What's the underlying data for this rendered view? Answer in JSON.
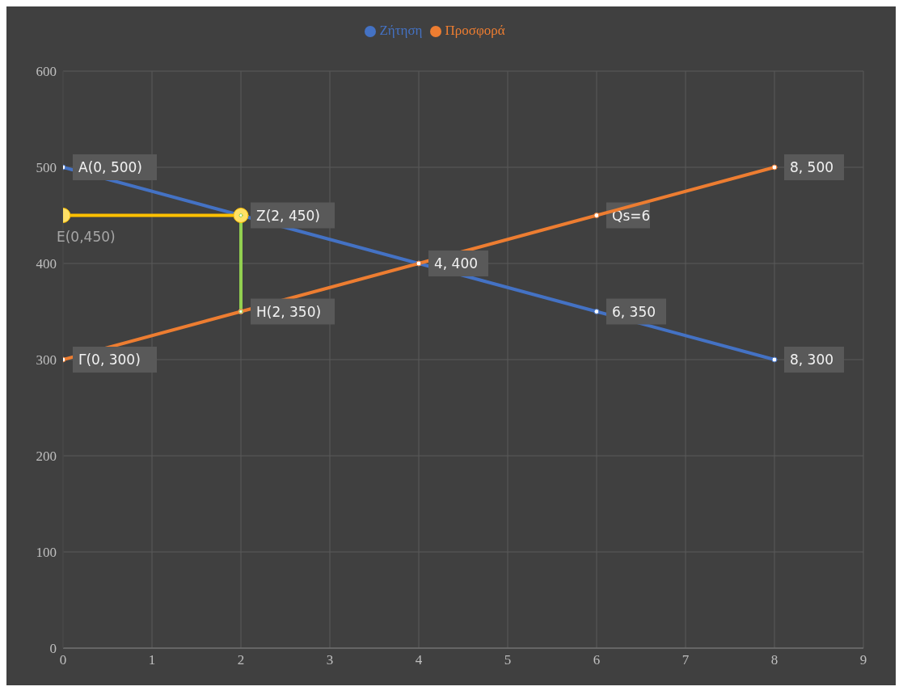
{
  "chart_data": {
    "type": "line",
    "legend": "top",
    "grid": true,
    "marker": "circle",
    "line_style": "solid",
    "xlim": [
      0,
      9
    ],
    "xticks": [
      0,
      1,
      2,
      3,
      4,
      5,
      6,
      7,
      8,
      9
    ],
    "ylim": [
      0,
      600
    ],
    "yticks": [
      0,
      100,
      200,
      300,
      400,
      500,
      600
    ],
    "series": [
      {
        "name": "Ζήτηση",
        "color": "#4472c4",
        "x": [
          0,
          2,
          4,
          6,
          8
        ],
        "values": [
          500,
          450,
          400,
          350,
          300
        ],
        "value_labels": [
          "A(0, 500)",
          "Z(2, 450)",
          "4, 400",
          "6, 350",
          "8, 300"
        ]
      },
      {
        "name": "Προσφορά",
        "color": "#ed7d31",
        "x": [
          0,
          2,
          4,
          6,
          8
        ],
        "values": [
          300,
          350,
          400,
          450,
          500
        ],
        "value_labels": [
          "Γ(0, 300)",
          "H(2, 350)",
          null,
          null,
          "8, 500"
        ]
      },
      {
        "color": "#ffc000",
        "x": [
          0,
          2
        ],
        "values": [
          450,
          450
        ],
        "value_labels": [
          "E(0,450)",
          null
        ]
      },
      {
        "color": "#92d050",
        "x": [
          2,
          2
        ],
        "values": [
          350,
          450
        ]
      }
    ],
    "annotations": [
      {
        "text": "Qs=6",
        "x": 6,
        "y": 450
      }
    ]
  }
}
